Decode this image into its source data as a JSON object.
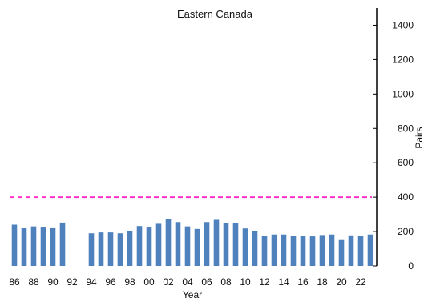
{
  "chart_data": {
    "type": "bar",
    "title": "Eastern Canada",
    "xlabel": "Year",
    "ylabel": "Pairs",
    "ylim": [
      0,
      1500
    ],
    "yticks": [
      0,
      200,
      400,
      600,
      800,
      1000,
      1200,
      1400
    ],
    "y_axis_position": "right",
    "grid": false,
    "categories": [
      "1986",
      "1987",
      "1988",
      "1989",
      "1990",
      "1991",
      "1992",
      "1993",
      "1994",
      "1995",
      "1996",
      "1997",
      "1998",
      "1999",
      "2000",
      "2001",
      "2002",
      "2003",
      "2004",
      "2005",
      "2006",
      "2007",
      "2008",
      "2009",
      "2010",
      "2011",
      "2012",
      "2013",
      "2014",
      "2015",
      "2016",
      "2017",
      "2018",
      "2019",
      "2020",
      "2021",
      "2022",
      "2023"
    ],
    "xtick_labels": [
      "86",
      "88",
      "90",
      "92",
      "94",
      "96",
      "98",
      "00",
      "02",
      "04",
      "06",
      "08",
      "10",
      "12",
      "14",
      "16",
      "18",
      "20",
      "22"
    ],
    "values": [
      240,
      222,
      230,
      228,
      224,
      252,
      null,
      null,
      190,
      195,
      195,
      190,
      205,
      232,
      228,
      245,
      272,
      255,
      230,
      215,
      255,
      268,
      250,
      248,
      218,
      205,
      175,
      183,
      183,
      175,
      173,
      172,
      180,
      183,
      155,
      178,
      174,
      183
    ],
    "bar_color": "#4f81bd",
    "reference_line": {
      "value": 400,
      "color": "#ff33cc",
      "style": "dashed"
    }
  }
}
